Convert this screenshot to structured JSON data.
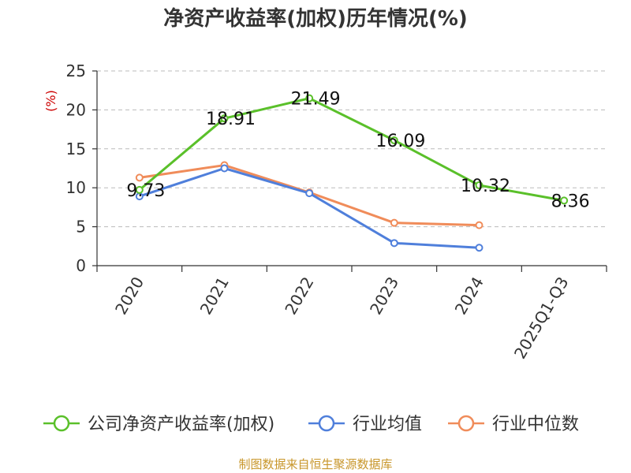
{
  "chart_data": {
    "type": "line",
    "title": "净资产收益率(加权)历年情况(%)",
    "ylabel": "(%)",
    "xlabel": "",
    "ylim": [
      0,
      25
    ],
    "yticks": [
      0,
      5,
      10,
      15,
      20,
      25
    ],
    "grid": true,
    "categories": [
      "2020",
      "2021",
      "2022",
      "2023",
      "2024",
      "2025Q1-Q3"
    ],
    "legend_position": "bottom",
    "series": [
      {
        "name": "公司净资产收益率(加权)",
        "color": "#5ac02a",
        "values": [
          9.73,
          18.91,
          21.49,
          16.09,
          10.32,
          8.36
        ],
        "labels": [
          "9.73",
          "18.91",
          "21.49",
          "16.09",
          "10.32",
          "8.36"
        ]
      },
      {
        "name": "行业均值",
        "color": "#4f7fdb",
        "values": [
          8.9,
          12.5,
          9.3,
          2.9,
          2.3,
          null
        ]
      },
      {
        "name": "行业中位数",
        "color": "#f08c5a",
        "values": [
          11.3,
          12.9,
          9.4,
          5.5,
          5.2,
          null
        ]
      }
    ],
    "source": "制图数据来自恒生聚源数据库"
  }
}
